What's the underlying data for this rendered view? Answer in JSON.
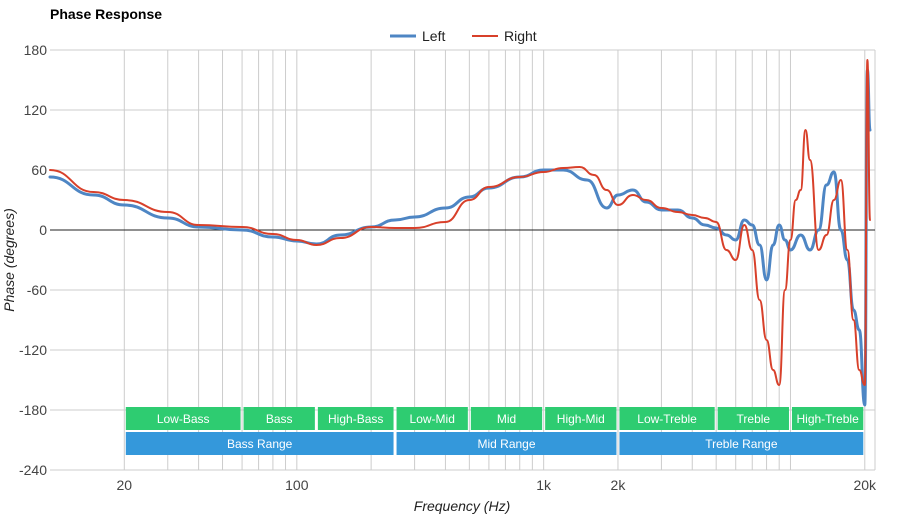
{
  "chart_data": {
    "type": "line",
    "title": "Phase Response",
    "xlabel": "Frequency (Hz)",
    "ylabel": "Phase (degrees)",
    "x_scale": "log",
    "xlim": [
      10,
      22000
    ],
    "ylim": [
      -240,
      180
    ],
    "grid": true,
    "legend_position": "top-center",
    "y_ticks": [
      180,
      120,
      60,
      0,
      -60,
      -120,
      -180,
      -240
    ],
    "x_tick_labels": [
      {
        "value": 20,
        "label": "20"
      },
      {
        "value": 100,
        "label": "100"
      },
      {
        "value": 1000,
        "label": "1k"
      },
      {
        "value": 2000,
        "label": "2k"
      },
      {
        "value": 20000,
        "label": "20k"
      }
    ],
    "series": [
      {
        "name": "Left",
        "color": "#4e86c4",
        "x": [
          10,
          15,
          20,
          30,
          40,
          60,
          80,
          100,
          120,
          150,
          200,
          250,
          300,
          400,
          500,
          600,
          800,
          1000,
          1200,
          1500,
          1800,
          2000,
          2300,
          2600,
          3000,
          3500,
          4000,
          4500,
          5000,
          5500,
          6000,
          6500,
          7000,
          7500,
          8000,
          8500,
          9000,
          9500,
          10000,
          11000,
          12000,
          13000,
          14000,
          15000,
          16000,
          17000,
          18000,
          19000,
          20000,
          20500,
          21000
        ],
        "y": [
          53,
          35,
          25,
          12,
          3,
          0,
          -7,
          -11,
          -14,
          -5,
          3,
          10,
          13,
          22,
          33,
          42,
          53,
          60,
          60,
          50,
          22,
          35,
          40,
          28,
          20,
          20,
          12,
          5,
          2,
          -5,
          -10,
          10,
          5,
          -15,
          -50,
          -15,
          5,
          -10,
          -20,
          -5,
          -20,
          0,
          45,
          58,
          0,
          -30,
          -80,
          -100,
          -175,
          160,
          100
        ]
      },
      {
        "name": "Right",
        "color": "#d8402a",
        "x": [
          10,
          15,
          20,
          30,
          40,
          60,
          80,
          100,
          120,
          150,
          200,
          250,
          300,
          400,
          500,
          600,
          800,
          1000,
          1200,
          1400,
          1600,
          1800,
          2000,
          2300,
          2600,
          3000,
          3500,
          4000,
          4500,
          5000,
          5500,
          6000,
          6500,
          7000,
          7500,
          8000,
          8500,
          9000,
          9500,
          10000,
          10500,
          11000,
          11500,
          12000,
          13000,
          14000,
          15000,
          16000,
          17000,
          18000,
          19000,
          20000,
          20500,
          21000
        ],
        "y": [
          60,
          38,
          30,
          18,
          5,
          3,
          -4,
          -10,
          -15,
          -8,
          3,
          2,
          2,
          8,
          30,
          43,
          53,
          58,
          62,
          63,
          55,
          40,
          25,
          35,
          30,
          22,
          18,
          15,
          12,
          8,
          -20,
          -30,
          5,
          -20,
          -70,
          -110,
          -140,
          -155,
          -60,
          -10,
          30,
          40,
          100,
          70,
          -20,
          -5,
          30,
          50,
          -20,
          -90,
          -140,
          -155,
          170,
          10
        ]
      }
    ],
    "bands": [
      {
        "label": "Low-Bass",
        "x0": 20,
        "x1": 60,
        "row": 1,
        "color": "#2ecc71"
      },
      {
        "label": "Bass",
        "x0": 60,
        "x1": 120,
        "row": 1,
        "color": "#2ecc71"
      },
      {
        "label": "High-Bass",
        "x0": 120,
        "x1": 250,
        "row": 1,
        "color": "#2ecc71"
      },
      {
        "label": "Low-Mid",
        "x0": 250,
        "x1": 500,
        "row": 1,
        "color": "#2ecc71"
      },
      {
        "label": "Mid",
        "x0": 500,
        "x1": 1000,
        "row": 1,
        "color": "#2ecc71"
      },
      {
        "label": "High-Mid",
        "x0": 1000,
        "x1": 2000,
        "row": 1,
        "color": "#2ecc71"
      },
      {
        "label": "Low-Treble",
        "x0": 2000,
        "x1": 5000,
        "row": 1,
        "color": "#2ecc71"
      },
      {
        "label": "Treble",
        "x0": 5000,
        "x1": 10000,
        "row": 1,
        "color": "#2ecc71"
      },
      {
        "label": "High-Treble",
        "x0": 10000,
        "x1": 20000,
        "row": 1,
        "color": "#2ecc71"
      },
      {
        "label": "Bass Range",
        "x0": 20,
        "x1": 250,
        "row": 2,
        "color": "#3498db"
      },
      {
        "label": "Mid Range",
        "x0": 250,
        "x1": 2000,
        "row": 2,
        "color": "#3498db"
      },
      {
        "label": "Treble Range",
        "x0": 2000,
        "x1": 20000,
        "row": 2,
        "color": "#3498db"
      }
    ]
  }
}
